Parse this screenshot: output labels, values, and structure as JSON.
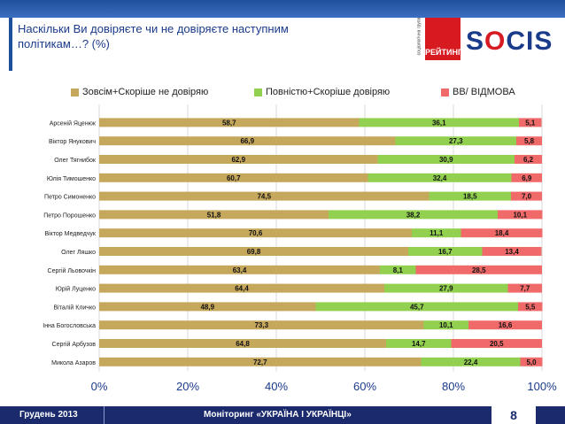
{
  "header": {
    "title": "Наскільки Ви довіряєте чи не довіряєте наступним політикам…? (%)",
    "rating_vertical": "соціологічна група",
    "rating_label": "РЕЙТИНГ",
    "logo_s1": "S",
    "logo_o": "O",
    "logo_cis": "CIS"
  },
  "footer": {
    "date": "Грудень 2013",
    "monitoring": "Моніторинг «УКРАЇНА І УКРАЇНЦІ»",
    "page": "8"
  },
  "colors": {
    "distrust": "#c6a85d",
    "trust": "#92d050",
    "dk": "#f06a6a"
  },
  "chart_data": {
    "type": "bar",
    "stacked": true,
    "orientation": "horizontal",
    "title": "Наскільки Ви довіряєте чи не довіряєте наступним політикам…? (%)",
    "categories": [
      "Арсеній Яценюк",
      "Віктор Янукович",
      "Олег Тягнибок",
      "Юлія Тимошенко",
      "Петро Симоненко",
      "Петро Порошенко",
      "Віктор Медведчук",
      "Олег Ляшко",
      "Сергій Льовочкін",
      "Юрій Луценко",
      "Віталій Кличко",
      "Інна Богословська",
      "Сергій Арбузов",
      "Микола Азаров"
    ],
    "series": [
      {
        "name": "Зовсім+Скоріше не довіряю",
        "values": [
          58.7,
          66.9,
          62.9,
          60.7,
          74.5,
          51.8,
          70.6,
          69.8,
          63.4,
          64.4,
          48.9,
          73.3,
          64.8,
          72.7
        ]
      },
      {
        "name": "Повністю+Скоріше довіряю",
        "values": [
          36.1,
          27.3,
          30.9,
          32.4,
          18.5,
          38.2,
          11.1,
          16.7,
          8.1,
          27.9,
          45.7,
          10.1,
          14.7,
          22.4
        ]
      },
      {
        "name": "ВВ/ ВІДМОВА",
        "values": [
          5.1,
          5.8,
          6.2,
          6.9,
          7.0,
          10.1,
          18.4,
          13.4,
          28.5,
          7.7,
          5.5,
          16.6,
          20.5,
          5.0
        ]
      }
    ],
    "labels": [
      [
        "58,7",
        "36,1",
        "5,1"
      ],
      [
        "66,9",
        "27,3",
        "5,8"
      ],
      [
        "62,9",
        "30,9",
        "6,2"
      ],
      [
        "60,7",
        "32,4",
        "6,9"
      ],
      [
        "74,5",
        "18,5",
        "7,0"
      ],
      [
        "51,8",
        "38,2",
        "10,1"
      ],
      [
        "70,6",
        "11,1",
        "18,4"
      ],
      [
        "69,8",
        "16,7",
        "13,4"
      ],
      [
        "63,4",
        "8,1",
        "28,5"
      ],
      [
        "64,4",
        "27,9",
        "7,7"
      ],
      [
        "48,9",
        "45,7",
        "5,5"
      ],
      [
        "73,3",
        "10,1",
        "16,6"
      ],
      [
        "64,8",
        "14,7",
        "20,5"
      ],
      [
        "72,7",
        "22,4",
        "5,0"
      ]
    ],
    "x_ticks": [
      "0%",
      "20%",
      "40%",
      "60%",
      "80%",
      "100%"
    ],
    "xlim": [
      0,
      100
    ],
    "legend_position": "top"
  }
}
